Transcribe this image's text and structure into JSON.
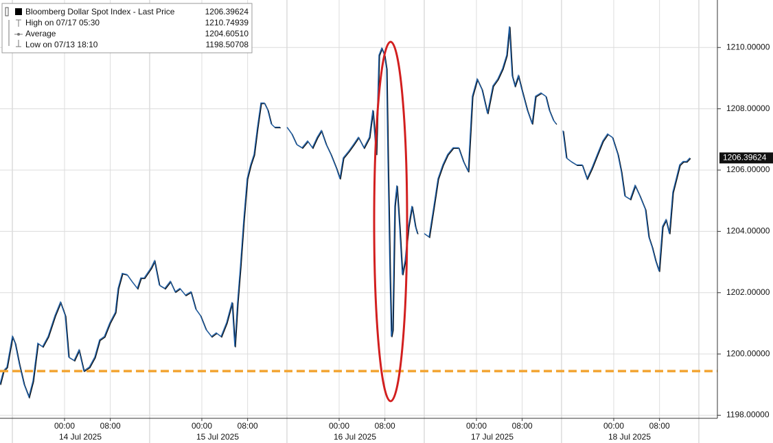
{
  "chart_data": {
    "type": "line",
    "legend": [
      {
        "name": "Bloomberg Dollar Spot Index - Last Price",
        "value": 1206.39624
      },
      {
        "name": "High on 07/17 05:30",
        "value": 1210.74939
      },
      {
        "name": "Average",
        "value": 1204.6051,
        "value_label": "1204.60510"
      },
      {
        "name": "Low on 07/13 18:10",
        "value": 1198.50708
      }
    ],
    "x": [
      -11.28,
      -10.68,
      -10.08,
      -9.12,
      -8.64,
      -7.92,
      -7.08,
      -6.24,
      -5.52,
      -4.68,
      -3.84,
      -2.88,
      -1.68,
      -0.72,
      0.12,
      0.72,
      1.68,
      2.52,
      3.36,
      4.32,
      5.28,
      6.12,
      6.96,
      7.92,
      8.88,
      9.36,
      10.08,
      10.92,
      11.76,
      12.72,
      13.32,
      13.92,
      15.12,
      15.72,
      16.56,
      17.52,
      18.48,
      19.32,
      20.16,
      21.12,
      22.08,
      22.92,
      23.76,
      24.72,
      25.68,
      26.52,
      27.36,
      28.32,
      29.28,
      29.76,
      30.24,
      30.72,
      31.32,
      31.92,
      32.52,
      33.12,
      33.72,
      34.32,
      34.92,
      35.52,
      36.12,
      36.72,
      37.68,
      38.28,
      38.88,
      39.72,
      40.56,
      41.52,
      42.48,
      43.32,
      44.16,
      44.88,
      45.72,
      46.56,
      47.52,
      48.12,
      48.72,
      49.68,
      50.52,
      51.36,
      52.32,
      53.28,
      53.88,
      54.48,
      54.96,
      55.44,
      55.92,
      56.28,
      56.52,
      56.88,
      57.12,
      57.36,
      57.72,
      58.08,
      58.56,
      59.04,
      59.52,
      60.12,
      60.72,
      61.32,
      61.68,
      62.28,
      62.88,
      63.72,
      64.56,
      65.28,
      66.12,
      66.96,
      67.92,
      68.88,
      69.72,
      70.56,
      71.28,
      72.12,
      72.96,
      73.92,
      74.88,
      75.72,
      76.56,
      77.28,
      77.76,
      78.24,
      78.72,
      79.32,
      79.92,
      80.88,
      81.72,
      82.32,
      83.28,
      84.12,
      84.72,
      85.44,
      85.92,
      86.52,
      87.12,
      87.72,
      88.56,
      89.52,
      90.48,
      91.32,
      92.16,
      93.12,
      94.08,
      94.92,
      95.76,
      96.72,
      97.32,
      97.92,
      98.88,
      99.72,
      100.56,
      101.52,
      102.12,
      102.72,
      103.32,
      103.92,
      104.52,
      105.12,
      105.72,
      106.32,
      106.92,
      107.52,
      108.12,
      108.72,
      109.32
    ],
    "series": [
      {
        "name": "Bloomberg Dollar Spot Index - Last Price",
        "color": "#1f5fa6",
        "values": [
          1199.01,
          1199.45,
          1199.57,
          1200.57,
          1200.35,
          1199.68,
          1199.01,
          1198.6,
          1199.12,
          1200.35,
          1200.24,
          1200.57,
          1201.25,
          1201.69,
          1201.25,
          1199.9,
          1199.79,
          1200.13,
          1199.45,
          1199.57,
          1199.9,
          1200.46,
          1200.57,
          1201.02,
          1201.36,
          1202.14,
          1202.63,
          1202.59,
          1202.37,
          1202.14,
          1202.48,
          1202.48,
          1202.81,
          1203.04,
          1202.25,
          1202.14,
          1202.37,
          1202.03,
          1202.14,
          1201.92,
          1202.03,
          1201.47,
          1201.25,
          1200.8,
          1200.57,
          1200.69,
          1200.57,
          1201.02,
          1201.69,
          1200.24,
          1201.69,
          1202.81,
          1204.38,
          1205.72,
          1206.17,
          1206.51,
          1207.4,
          1208.19,
          1208.19,
          1207.96,
          1207.51,
          1207.4,
          1207.4,
          null,
          1207.4,
          1207.18,
          1206.84,
          1206.73,
          1206.95,
          1206.73,
          1207.07,
          1207.29,
          1206.84,
          1206.51,
          1206.06,
          1205.72,
          1206.4,
          1206.62,
          1206.84,
          1207.07,
          1206.73,
          1207.07,
          1207.96,
          1206.51,
          1209.75,
          1209.98,
          1209.75,
          1209.31,
          1206.4,
          1202.59,
          1200.57,
          1200.8,
          1204.83,
          1205.5,
          1204.16,
          1202.59,
          1203.04,
          1204.16,
          1204.83,
          1204.16,
          1203.93,
          null,
          1203.93,
          1203.82,
          1204.83,
          1205.72,
          1206.17,
          1206.51,
          1206.73,
          1206.73,
          1206.28,
          1205.95,
          1208.41,
          1208.97,
          1208.63,
          1207.85,
          1208.75,
          1208.97,
          1209.31,
          1209.75,
          1210.69,
          1209.08,
          1208.75,
          1209.08,
          1208.63,
          1207.96,
          1207.51,
          1208.41,
          1208.52,
          1208.41,
          1207.96,
          1207.63,
          1207.51,
          null,
          1207.29,
          1206.4,
          1206.28,
          1206.17,
          1206.17,
          1205.72,
          1206.06,
          1206.51,
          1206.95,
          1207.18,
          1207.07,
          1206.51,
          1205.95,
          1205.16,
          1205.05,
          1205.5,
          1205.16,
          1204.72,
          1203.82,
          1203.48,
          1203.04,
          1202.7,
          1204.16,
          1204.38,
          1203.93,
          1205.28,
          1205.72,
          1206.17,
          1206.28,
          1206.28,
          1206.4
        ]
      }
    ],
    "reference_line": {
      "value": 1199.44,
      "color": "#f2a431"
    },
    "xlim": [
      -11.28,
      114.12
    ],
    "xticks": [
      {
        "value": 0,
        "label": "00:00"
      },
      {
        "value": 8,
        "label": "08:00"
      },
      {
        "value": 24,
        "label": "00:00"
      },
      {
        "value": 32,
        "label": "08:00"
      },
      {
        "value": 48,
        "label": "00:00"
      },
      {
        "value": 56,
        "label": "08:00"
      },
      {
        "value": 72,
        "label": "00:00"
      },
      {
        "value": 80,
        "label": "08:00"
      },
      {
        "value": 96,
        "label": "00:00"
      },
      {
        "value": 104,
        "label": "08:00"
      }
    ],
    "date_labels": [
      {
        "value": 2.76,
        "label": "14 Jul 2025"
      },
      {
        "value": 26.76,
        "label": "15 Jul 2025"
      },
      {
        "value": 50.76,
        "label": "16 Jul 2025"
      },
      {
        "value": 74.76,
        "label": "17 Jul 2025"
      },
      {
        "value": 98.76,
        "label": "18 Jul 2025"
      }
    ],
    "ylim": [
      1197.9,
      1211.55
    ],
    "yticks": [
      {
        "value": 1198,
        "label": "1198.00000"
      },
      {
        "value": 1200,
        "label": "1200.00000"
      },
      {
        "value": 1202,
        "label": "1202.00000"
      },
      {
        "value": 1204,
        "label": "1204.00000"
      },
      {
        "value": 1206,
        "label": "1206.00000"
      },
      {
        "value": 1208,
        "label": "1208.00000"
      },
      {
        "value": 1210,
        "label": "1210.00000"
      }
    ],
    "grid": true
  }
}
